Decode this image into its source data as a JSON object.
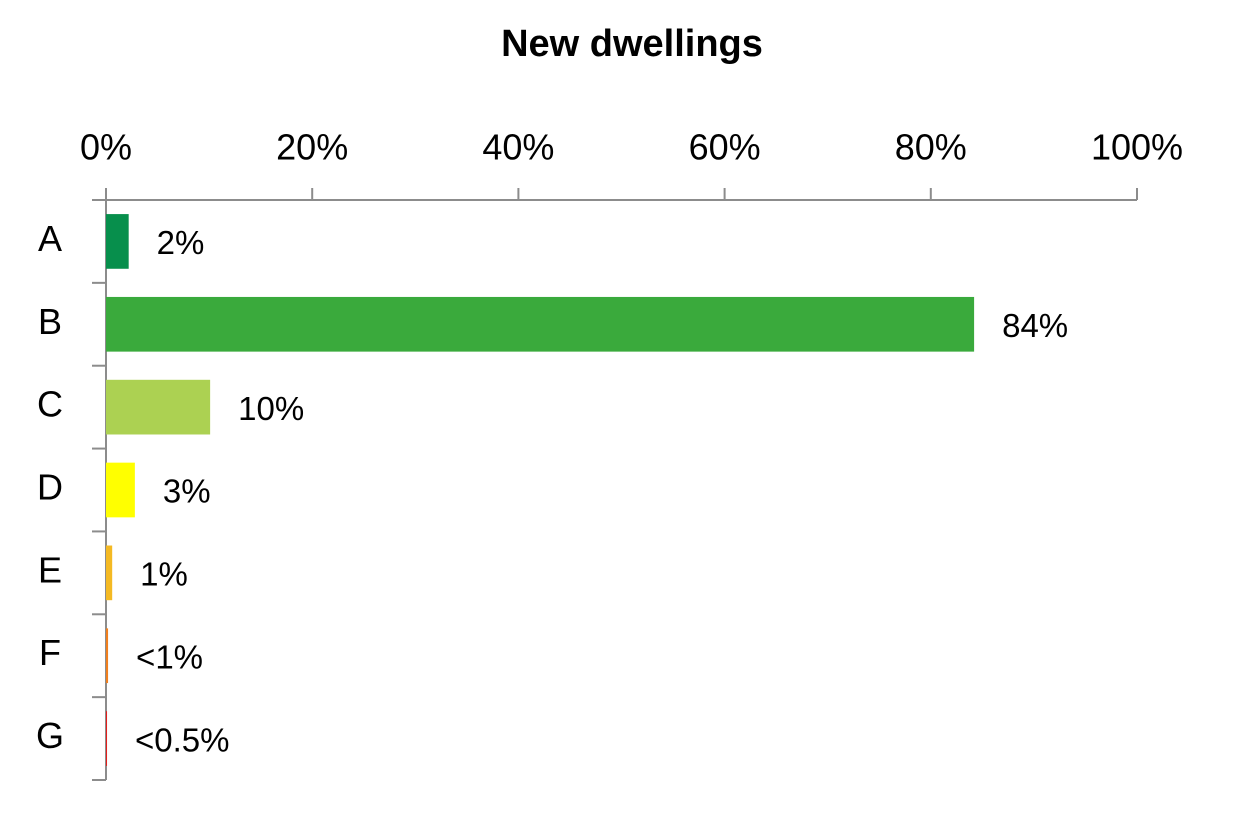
{
  "chart_data": {
    "type": "hbar",
    "title": "New dwellings",
    "categories": [
      "A",
      "B",
      "C",
      "D",
      "E",
      "F",
      "G"
    ],
    "values": [
      2.2,
      84.2,
      10.1,
      2.8,
      0.6,
      0.2,
      0.1
    ],
    "value_labels": [
      "2%",
      "84%",
      "10%",
      "3%",
      "1%",
      "<1%",
      "<0.5%"
    ],
    "colors": [
      "#078f4c",
      "#3aaa3c",
      "#acd152",
      "#ffff00",
      "#f4b923",
      "#f07f1e",
      "#e31d1a"
    ],
    "xlim": [
      0,
      100
    ],
    "xticks": [
      {
        "value": 0,
        "label": "0%"
      },
      {
        "value": 20,
        "label": "20%"
      },
      {
        "value": 40,
        "label": "40%"
      },
      {
        "value": 60,
        "label": "60%"
      },
      {
        "value": 80,
        "label": "80%"
      },
      {
        "value": 100,
        "label": "100%"
      }
    ],
    "xaxis_position": "top",
    "grid": false
  }
}
